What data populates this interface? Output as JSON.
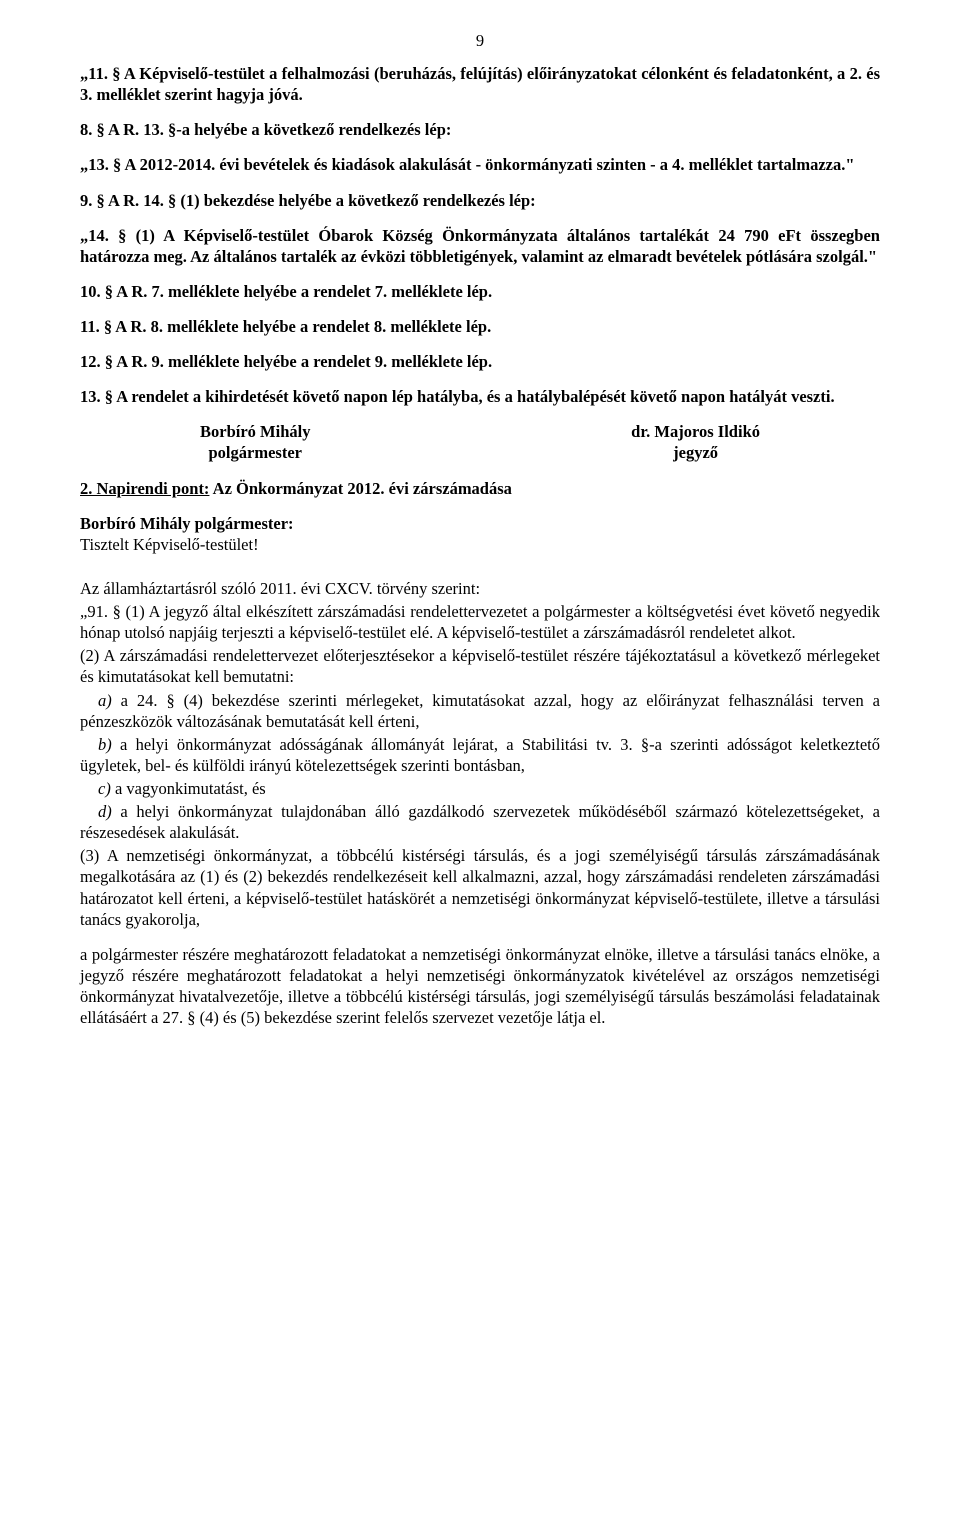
{
  "page_number": "9",
  "p1": "„11. § A Képviselő-testület a felhalmozási (beruházás, felújítás) előirányzatokat célonként és feladatonként, a 2. és 3. melléklet szerint hagyja jóvá.",
  "p2": "8. § A R. 13. §-a helyébe a következő rendelkezés lép:",
  "p3": "„13. § A 2012-2014. évi bevételek és kiadások alakulását - önkormányzati szinten - a 4. melléklet tartalmazza.\"",
  "p4": "9. § A R. 14. § (1) bekezdése helyébe a következő rendelkezés lép:",
  "p5": "„14. § (1) A Képviselő-testület Óbarok Község Önkormányzata általános tartalékát 24 790 eFt összegben határozza meg. Az általános tartalék az évközi többletigények, valamint az elmaradt bevételek pótlására szolgál.\"",
  "p6": "10. § A R. 7. melléklete helyébe a rendelet 7. melléklete lép.",
  "p7": "11. § A R. 8. melléklete helyébe a rendelet 8. melléklete lép.",
  "p8": "12. § A R. 9. melléklete helyébe a rendelet 9. melléklete lép.",
  "p9": "13. § A rendelet a kihirdetését követő napon lép hatályba, és a hatálybalépését követő napon hatályát veszti.",
  "sig_left_name": "Borbíró Mihály",
  "sig_left_title": "polgármester",
  "sig_right_name": "dr. Majoros Ildikó",
  "sig_right_title": "jegyző",
  "h2_prefix": "2. Napirendi pont:",
  "h2_rest": " Az Önkormányzat 2012. évi zárszámadása",
  "p10a": "Borbíró Mihály polgármester:",
  "p10b": "Tisztelt Képviselő-testület!",
  "p11": "Az államháztartásról szóló 2011. évi CXCV. törvény szerint:",
  "p12": "„91. § (1) A jegyző által elkészített zárszámadási rendelettervezetet a polgármester a költségvetési évet követő negyedik hónap utolsó napjáig terjeszti a képviselő-testület elé. A képviselő-testület a zárszámadásról rendeletet alkot.",
  "p13": "(2) A zárszámadási rendelettervezet előterjesztésekor a képviselő-testület részére tájékoztatásul a következő mérlegeket és kimutatásokat kell bemutatni:",
  "li_a_label": "a) ",
  "li_a": "a 24. § (4) bekezdése szerinti mérlegeket, kimutatásokat azzal, hogy az előirányzat felhasználási terven a pénzeszközök változásának bemutatását kell érteni,",
  "li_b_label": "b) ",
  "li_b": "a helyi önkormányzat adósságának állományát lejárat, a Stabilitási tv. 3. §-a szerinti adósságot keletkeztető ügyletek, bel- és külföldi irányú kötelezettségek szerinti bontásban,",
  "li_c_label": "c) ",
  "li_c": "a vagyonkimutatást, és",
  "li_d_label": "d) ",
  "li_d": "a helyi önkormányzat tulajdonában álló gazdálkodó szervezetek működéséből származó kötelezettségeket, a részesedések alakulását.",
  "p14": "(3) A nemzetiségi önkormányzat, a többcélú kistérségi társulás, és a jogi személyiségű társulás zárszámadásának megalkotására az (1) és (2) bekezdés rendelkezéseit kell alkalmazni, azzal, hogy zárszámadási rendeleten zárszámadási határozatot kell érteni, a képviselő-testület hatáskörét a nemzetiségi önkormányzat képviselő-testülete, illetve a társulási tanács gyakorolja,",
  "p15": "a polgármester részére meghatározott feladatokat a nemzetiségi önkormányzat elnöke, illetve a társulási tanács elnöke, a jegyző részére meghatározott feladatokat a helyi nemzetiségi önkormányzatok kivételével az országos nemzetiségi önkormányzat hivatalvezetője, illetve a többcélú kistérségi társulás, jogi személyiségű társulás beszámolási feladatainak ellátásáért a 27. § (4) és (5) bekezdése szerint felelős szervezet vezetője látja el."
}
